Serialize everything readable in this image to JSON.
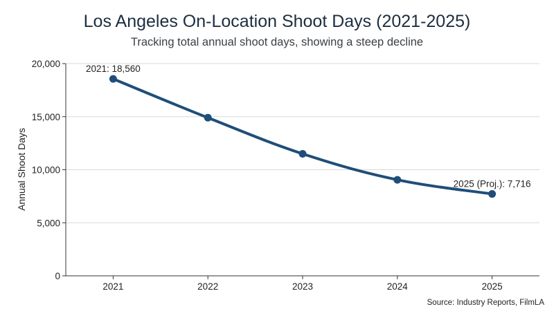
{
  "chart_data": {
    "type": "line",
    "title": "Los Angeles On-Location Shoot Days (2021-2025)",
    "subtitle": "Tracking total annual shoot days, showing a steep decline",
    "xlabel": "",
    "ylabel": "Annual Shoot Days",
    "categories": [
      "2021",
      "2022",
      "2023",
      "2024",
      "2025"
    ],
    "series": [
      {
        "values": [
          18560,
          14900,
          11500,
          9050,
          7716
        ]
      }
    ],
    "ylim": [
      0,
      20000
    ],
    "yticks": [
      0,
      5000,
      10000,
      15000,
      20000
    ],
    "ytick_labels": [
      "0",
      "5,000",
      "10,000",
      "15,000",
      "20,000"
    ],
    "grid": "horizontal",
    "annotations": [
      {
        "category": "2021",
        "value": 18560,
        "text": "2021: 18,560"
      },
      {
        "category": "2025",
        "value": 7716,
        "text": "2025 (Proj.): 7,716"
      }
    ],
    "source": "Source: Industry Reports, FilmLA",
    "colors": {
      "line": "#1f4e79",
      "grid": "#d9d9d9",
      "axis": "#333333",
      "title": "#1c2e40"
    }
  }
}
